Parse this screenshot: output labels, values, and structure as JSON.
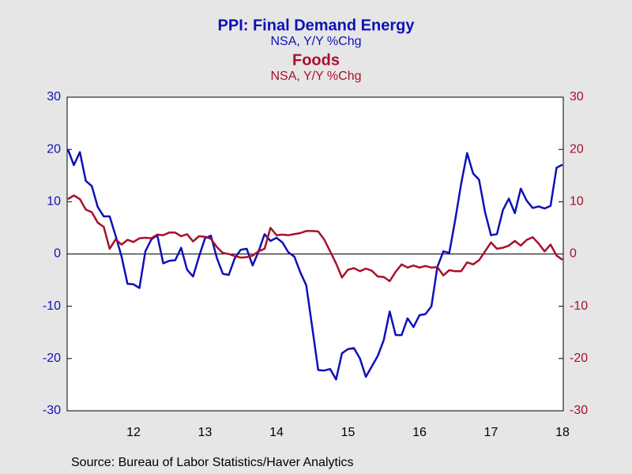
{
  "chart_data": {
    "type": "line",
    "title": "PPI: Final Demand Energy",
    "source": "Source:  Bureau of Labor Statistics/Haver Analytics",
    "categories": [
      null,
      null,
      null,
      null,
      null,
      null,
      null,
      null,
      null,
      null,
      null,
      "12",
      null,
      null,
      null,
      null,
      null,
      null,
      null,
      null,
      null,
      null,
      null,
      "13",
      null,
      null,
      null,
      null,
      null,
      null,
      null,
      null,
      null,
      null,
      null,
      "14",
      null,
      null,
      null,
      null,
      null,
      null,
      null,
      null,
      null,
      null,
      null,
      "15",
      null,
      null,
      null,
      null,
      null,
      null,
      null,
      null,
      null,
      null,
      null,
      "16",
      null,
      null,
      null,
      null,
      null,
      null,
      null,
      null,
      null,
      null,
      null,
      "17",
      null,
      null,
      null,
      null,
      null,
      null,
      null,
      null,
      null,
      null,
      null,
      "18"
    ],
    "series": [
      {
        "name": "PPI: Final Demand Energy",
        "unit": "NSA, Y/Y %Chg",
        "color": "#1010b8",
        "axis": "y",
        "values": [
          20,
          17,
          19.5,
          14,
          13,
          9,
          7.2,
          7.2,
          3.5,
          -0.5,
          -5.7,
          -5.8,
          -6.5,
          0.5,
          2.8,
          3.6,
          -1.8,
          -1.3,
          -1.2,
          1.2,
          -3,
          -4.3,
          -0.5,
          3,
          3.5,
          -0.8,
          -3.8,
          -4,
          -0.8,
          0.8,
          1,
          -2.2,
          0.5,
          3.8,
          2.5,
          3.1,
          2.2,
          0.3,
          -0.5,
          -3.5,
          -6,
          -14,
          -22.2,
          -22.3,
          -22,
          -24,
          -19,
          -18.2,
          -18,
          -20,
          -23.5,
          -21.5,
          -19.5,
          -16.5,
          -11,
          -15.5,
          -15.5,
          -12.3,
          -14,
          -11.7,
          -11.5,
          -10,
          -2.5,
          0.5,
          0.2,
          6.5,
          13.5,
          19.3,
          15.4,
          14.2,
          8,
          3.6,
          3.8,
          8.4,
          10.6,
          7.8,
          12.5,
          10.2,
          8.8,
          9.1,
          8.7,
          9.2,
          16.5,
          17.1
        ]
      },
      {
        "name": "Foods",
        "unit": "NSA, Y/Y %Chg",
        "color": "#a8102c",
        "axis": "y2",
        "values": [
          10.5,
          11.2,
          10.5,
          8.5,
          8,
          6,
          5.2,
          1,
          2.8,
          1.8,
          2.7,
          2.3,
          3,
          3.1,
          3,
          3.7,
          3.6,
          4.1,
          4.1,
          3.4,
          3.8,
          2.4,
          3.4,
          3.3,
          2.9,
          1.3,
          0.2,
          0,
          -0.4,
          -0.7,
          -0.6,
          -0.3,
          0.5,
          1,
          5,
          3.6,
          3.7,
          3.6,
          3.8,
          4,
          4.4,
          4.4,
          4.3,
          2.8,
          0.5,
          -1.8,
          -4.5,
          -3,
          -2.7,
          -3.3,
          -2.8,
          -3.2,
          -4.3,
          -4.4,
          -5.2,
          -3.4,
          -2,
          -2.6,
          -2.2,
          -2.6,
          -2.3,
          -2.6,
          -2.5,
          -4.1,
          -3.1,
          -3.3,
          -3.3,
          -1.6,
          -2,
          -1.2,
          0.5,
          2.2,
          1,
          1.2,
          1.6,
          2.5,
          1.6,
          2.7,
          3.2,
          2,
          0.5,
          1.8,
          -0.3,
          -1.1
        ]
      }
    ],
    "ylim": [
      -30,
      30
    ],
    "yticks": [
      -30,
      -20,
      -10,
      0,
      10,
      20,
      30
    ],
    "y2lim": [
      -30,
      30
    ],
    "y2ticks": [
      -30,
      -20,
      -10,
      0,
      10,
      20,
      30
    ]
  }
}
